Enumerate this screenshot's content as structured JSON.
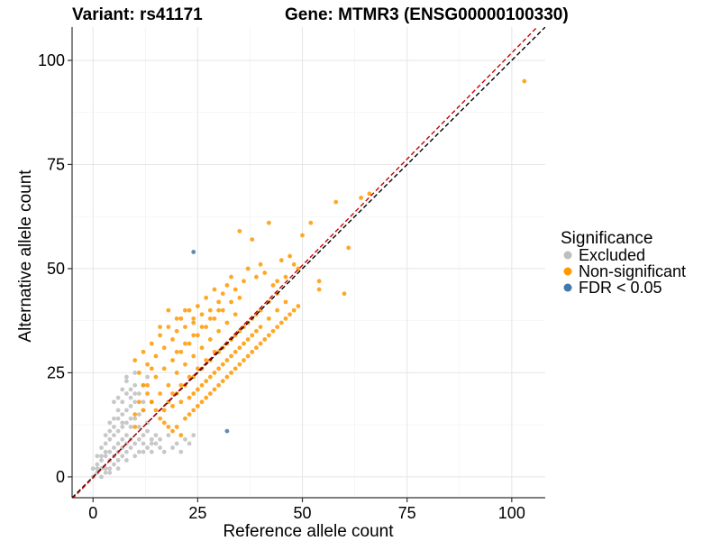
{
  "chart_data": {
    "type": "scatter",
    "title_left": "Variant: rs41171",
    "title_right": "Gene: MTMR3 (ENSG00000100330)",
    "xlabel": "Reference allele count",
    "ylabel": "Alternative allele count",
    "xlim": [
      -5,
      108
    ],
    "ylim": [
      -5,
      108
    ],
    "x_ticks": [
      0,
      25,
      50,
      75,
      100
    ],
    "y_ticks": [
      0,
      25,
      50,
      75,
      100
    ],
    "x_tick_labels": [
      "0",
      "25",
      "50",
      "75",
      "100"
    ],
    "y_tick_labels": [
      "0",
      "25",
      "50",
      "75",
      "100"
    ],
    "grid": true,
    "legend_position": "right",
    "legend_title": "Significance",
    "series": [
      {
        "name": "Excluded",
        "color": "#bebebe",
        "description": "many points with low counts (roughly ref 0-15, alt 0-25)",
        "points": [
          [
            0,
            0
          ],
          [
            1,
            1
          ],
          [
            2,
            2
          ],
          [
            1,
            3
          ],
          [
            3,
            1
          ],
          [
            2,
            4
          ],
          [
            4,
            2
          ],
          [
            3,
            5
          ],
          [
            5,
            3
          ],
          [
            4,
            6
          ],
          [
            6,
            4
          ],
          [
            5,
            7
          ],
          [
            7,
            5
          ],
          [
            6,
            8
          ],
          [
            8,
            6
          ],
          [
            7,
            9
          ],
          [
            9,
            7
          ],
          [
            8,
            10
          ],
          [
            10,
            8
          ],
          [
            3,
            8
          ],
          [
            4,
            9
          ],
          [
            5,
            10
          ],
          [
            6,
            11
          ],
          [
            7,
            12
          ],
          [
            8,
            13
          ],
          [
            6,
            14
          ],
          [
            7,
            15
          ],
          [
            8,
            16
          ],
          [
            9,
            17
          ],
          [
            5,
            12
          ],
          [
            4,
            11
          ],
          [
            6,
            16
          ],
          [
            7,
            18
          ],
          [
            8,
            20
          ],
          [
            5,
            18
          ],
          [
            9,
            21
          ],
          [
            10,
            22
          ],
          [
            8,
            23
          ],
          [
            3,
            6
          ],
          [
            2,
            5
          ],
          [
            9,
            12
          ],
          [
            10,
            14
          ],
          [
            11,
            15
          ],
          [
            12,
            16
          ],
          [
            10,
            18
          ],
          [
            11,
            20
          ],
          [
            9,
            19
          ],
          [
            12,
            22
          ],
          [
            13,
            24
          ],
          [
            10,
            25
          ],
          [
            11,
            9
          ],
          [
            12,
            10
          ],
          [
            13,
            11
          ],
          [
            12,
            8
          ],
          [
            14,
            9
          ],
          [
            13,
            7
          ],
          [
            15,
            8
          ],
          [
            14,
            6
          ],
          [
            16,
            7
          ],
          [
            11,
            6
          ],
          [
            2,
            0
          ],
          [
            3,
            2
          ],
          [
            4,
            4
          ],
          [
            5,
            5
          ],
          [
            6,
            6
          ],
          [
            7,
            7
          ],
          [
            8,
            8
          ],
          [
            9,
            9
          ],
          [
            1,
            2
          ],
          [
            0,
            2
          ],
          [
            4,
            1
          ],
          [
            6,
            2
          ],
          [
            8,
            4
          ],
          [
            10,
            5
          ],
          [
            12,
            6
          ],
          [
            14,
            8
          ],
          [
            16,
            9
          ],
          [
            18,
            10
          ],
          [
            20,
            8
          ],
          [
            22,
            9
          ],
          [
            17,
            6
          ],
          [
            19,
            7
          ],
          [
            21,
            6
          ],
          [
            23,
            8
          ],
          [
            24,
            10
          ],
          [
            15,
            10
          ],
          [
            13,
            13
          ],
          [
            11,
            12
          ],
          [
            9,
            14
          ],
          [
            7,
            13
          ],
          [
            5,
            14
          ],
          [
            3,
            10
          ],
          [
            2,
            7
          ],
          [
            1,
            5
          ],
          [
            4,
            13
          ],
          [
            6,
            19
          ],
          [
            7,
            21
          ],
          [
            8,
            24
          ],
          [
            10,
            20
          ],
          [
            12,
            18
          ]
        ]
      },
      {
        "name": "Non-significant",
        "color": "#ff9900",
        "description": "dense cloud along the diagonal (roughly ref 10-60, alt 10-60), plus outliers",
        "points": [
          [
            103,
            95
          ],
          [
            66,
            68
          ],
          [
            64,
            67
          ],
          [
            61,
            55
          ],
          [
            58,
            66
          ],
          [
            52,
            61
          ],
          [
            50,
            58
          ],
          [
            60,
            44
          ],
          [
            54,
            47
          ],
          [
            54,
            45
          ],
          [
            42,
            61
          ],
          [
            35,
            59
          ],
          [
            38,
            57
          ],
          [
            45,
            52
          ],
          [
            47,
            53
          ],
          [
            48,
            51
          ],
          [
            49,
            50
          ],
          [
            46,
            48
          ],
          [
            44,
            47
          ],
          [
            43,
            46
          ],
          [
            41,
            49
          ],
          [
            40,
            51
          ],
          [
            39,
            48
          ],
          [
            37,
            50
          ],
          [
            36,
            47
          ],
          [
            34,
            45
          ],
          [
            33,
            48
          ],
          [
            32,
            46
          ],
          [
            31,
            44
          ],
          [
            30,
            42
          ],
          [
            29,
            45
          ],
          [
            28,
            40
          ],
          [
            27,
            43
          ],
          [
            26,
            39
          ],
          [
            25,
            41
          ],
          [
            24,
            37
          ],
          [
            23,
            40
          ],
          [
            22,
            36
          ],
          [
            21,
            38
          ],
          [
            20,
            35
          ],
          [
            19,
            33
          ],
          [
            18,
            36
          ],
          [
            17,
            31
          ],
          [
            16,
            34
          ],
          [
            15,
            29
          ],
          [
            14,
            32
          ],
          [
            13,
            27
          ],
          [
            12,
            30
          ],
          [
            11,
            25
          ],
          [
            10,
            28
          ],
          [
            12,
            22
          ],
          [
            13,
            20
          ],
          [
            14,
            18
          ],
          [
            15,
            16
          ],
          [
            16,
            14
          ],
          [
            17,
            13
          ],
          [
            18,
            12
          ],
          [
            19,
            11
          ],
          [
            20,
            12
          ],
          [
            21,
            10
          ],
          [
            22,
            14
          ],
          [
            23,
            15
          ],
          [
            24,
            16
          ],
          [
            25,
            17
          ],
          [
            26,
            18
          ],
          [
            27,
            19
          ],
          [
            28,
            20
          ],
          [
            29,
            21
          ],
          [
            30,
            22
          ],
          [
            31,
            23
          ],
          [
            32,
            24
          ],
          [
            33,
            25
          ],
          [
            34,
            26
          ],
          [
            35,
            27
          ],
          [
            36,
            28
          ],
          [
            37,
            29
          ],
          [
            38,
            30
          ],
          [
            39,
            31
          ],
          [
            40,
            32
          ],
          [
            41,
            33
          ],
          [
            42,
            34
          ],
          [
            43,
            35
          ],
          [
            44,
            36
          ],
          [
            45,
            37
          ],
          [
            46,
            38
          ],
          [
            47,
            39
          ],
          [
            48,
            40
          ],
          [
            49,
            41
          ],
          [
            20,
            25
          ],
          [
            22,
            27
          ],
          [
            24,
            29
          ],
          [
            26,
            31
          ],
          [
            28,
            33
          ],
          [
            30,
            35
          ],
          [
            32,
            37
          ],
          [
            34,
            39
          ],
          [
            18,
            22
          ],
          [
            20,
            20
          ],
          [
            22,
            22
          ],
          [
            24,
            24
          ],
          [
            26,
            26
          ],
          [
            28,
            28
          ],
          [
            30,
            30
          ],
          [
            32,
            32
          ],
          [
            34,
            34
          ],
          [
            36,
            36
          ],
          [
            38,
            38
          ],
          [
            40,
            40
          ],
          [
            42,
            42
          ],
          [
            44,
            44
          ],
          [
            16,
            20
          ],
          [
            14,
            18
          ],
          [
            12,
            16
          ],
          [
            15,
            24
          ],
          [
            17,
            26
          ],
          [
            19,
            28
          ],
          [
            21,
            30
          ],
          [
            23,
            32
          ],
          [
            25,
            34
          ],
          [
            27,
            36
          ],
          [
            29,
            38
          ],
          [
            31,
            40
          ],
          [
            33,
            42
          ],
          [
            35,
            43
          ],
          [
            18,
            18
          ],
          [
            19,
            20
          ],
          [
            21,
            22
          ],
          [
            23,
            24
          ],
          [
            25,
            26
          ],
          [
            27,
            28
          ],
          [
            29,
            30
          ],
          [
            31,
            31
          ],
          [
            33,
            33
          ],
          [
            35,
            35
          ],
          [
            37,
            37
          ],
          [
            39,
            39
          ],
          [
            24,
            20
          ],
          [
            26,
            22
          ],
          [
            28,
            24
          ],
          [
            30,
            26
          ],
          [
            32,
            28
          ],
          [
            34,
            30
          ],
          [
            36,
            32
          ],
          [
            38,
            34
          ],
          [
            40,
            36
          ],
          [
            42,
            38
          ],
          [
            44,
            40
          ],
          [
            46,
            42
          ],
          [
            17,
            16
          ],
          [
            19,
            17
          ],
          [
            21,
            18
          ],
          [
            23,
            19
          ],
          [
            25,
            21
          ],
          [
            27,
            23
          ],
          [
            29,
            25
          ],
          [
            31,
            27
          ],
          [
            33,
            29
          ],
          [
            35,
            31
          ],
          [
            37,
            33
          ],
          [
            39,
            35
          ],
          [
            20,
            30
          ],
          [
            22,
            32
          ],
          [
            24,
            34
          ],
          [
            26,
            36
          ],
          [
            28,
            38
          ],
          [
            30,
            40
          ],
          [
            22,
            40
          ],
          [
            24,
            38
          ],
          [
            18,
            40
          ],
          [
            20,
            38
          ],
          [
            16,
            36
          ],
          [
            14,
            26
          ],
          [
            13,
            22
          ],
          [
            11,
            18
          ],
          [
            10,
            15
          ],
          [
            10,
            12
          ]
        ]
      },
      {
        "name": "FDR < 0.05",
        "color": "#4477aa",
        "description": "two highlighted points",
        "points": [
          [
            24,
            54
          ],
          [
            32,
            11
          ]
        ]
      }
    ],
    "reference_lines": [
      {
        "name": "identity line",
        "style": "dashed",
        "color": "#000000",
        "slope": 1,
        "intercept": 0
      },
      {
        "name": "fitted ratio line",
        "style": "dashed",
        "color": "#cc0000",
        "slope": 1.02,
        "intercept": -0.2
      }
    ]
  }
}
